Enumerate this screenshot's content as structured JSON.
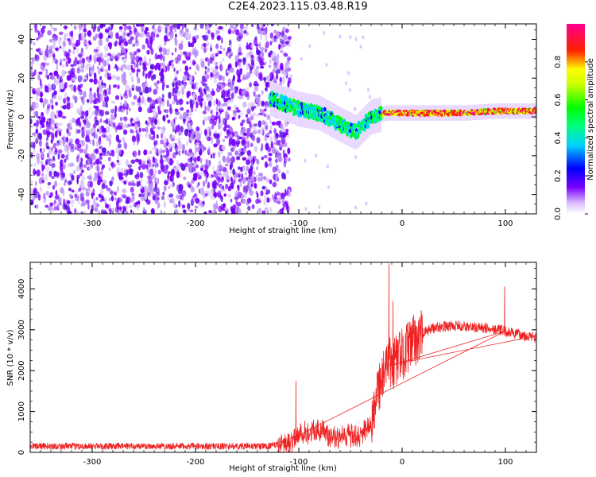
{
  "title": "C2E4.2023.115.03.48.R19",
  "colors": {
    "snr_line": "#ee2222",
    "background": "#ffffff",
    "axis": "#000000"
  },
  "chart_data": [
    {
      "type": "heatmap",
      "xlabel": "Height of straight line (km)",
      "ylabel": "Frequency (Hz)",
      "xlim": [
        -360,
        130
      ],
      "ylim": [
        -50,
        48
      ],
      "x_ticks": [
        -300,
        -200,
        -100,
        0,
        100
      ],
      "y_ticks": [
        -40,
        -20,
        0,
        20,
        40
      ],
      "colorbar": {
        "label": "Normalized spectral amplitude",
        "range": [
          0,
          1
        ],
        "ticks": [
          0.0,
          0.2,
          0.4,
          0.6,
          0.8
        ],
        "colormap": "white-purple-blue-cyan-green-yellow-red-magenta"
      },
      "features": [
        {
          "description": "broadband noise",
          "x_range": [
            -360,
            -118
          ],
          "amplitude": 0.12
        },
        {
          "description": "signal track",
          "points": [
            [
              -125,
              9
            ],
            [
              -100,
              4
            ],
            [
              -80,
              2
            ],
            [
              -60,
              -4
            ],
            [
              -45,
              -8
            ],
            [
              -30,
              0
            ],
            [
              -15,
              2
            ],
            [
              0,
              2
            ],
            [
              30,
              2
            ],
            [
              60,
              2
            ],
            [
              90,
              3
            ],
            [
              130,
              3
            ]
          ],
          "amplitude": 0.9
        }
      ]
    },
    {
      "type": "line",
      "xlabel": "Height of straight line (km)",
      "ylabel": "SNR (10 * v/v)",
      "xlim": [
        -360,
        130
      ],
      "ylim": [
        0,
        4650
      ],
      "x_ticks": [
        -300,
        -200,
        -100,
        0,
        100
      ],
      "y_ticks": [
        0,
        1000,
        2000,
        3000,
        4000
      ],
      "series": [
        {
          "x": [
            -360,
            -300,
            -200,
            -130,
            -110,
            -100,
            -90,
            -80,
            -70,
            -60,
            -50,
            -40,
            -30,
            -25,
            -20,
            -15,
            -12,
            -10,
            -5,
            0,
            10,
            20,
            30,
            40,
            50,
            60,
            70,
            80,
            90,
            95,
            100,
            110,
            120,
            130
          ],
          "values": [
            150,
            150,
            150,
            150,
            220,
            450,
            500,
            520,
            450,
            400,
            380,
            380,
            700,
            1500,
            1800,
            2000,
            2200,
            2100,
            2300,
            2400,
            2700,
            2900,
            3050,
            3080,
            3100,
            3080,
            3060,
            3040,
            3020,
            3000,
            2950,
            2900,
            2850,
            2800
          ]
        }
      ],
      "peaks": [
        {
          "x": -13,
          "y": 4620
        },
        {
          "x": -9,
          "y": 3700
        },
        {
          "x": 99,
          "y": 4050
        },
        {
          "x": -103,
          "y": 1750
        }
      ]
    }
  ]
}
